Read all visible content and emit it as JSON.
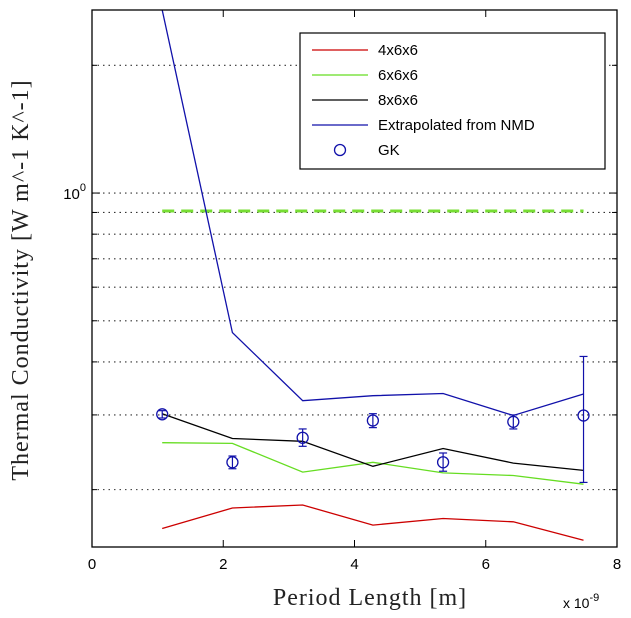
{
  "chart_data": {
    "type": "line",
    "xlabel": "Period Length [m]",
    "ylabel": "Thermal Conductivity [W m^-1 K^-1]",
    "x_multiplier_label": "x 10",
    "x_multiplier_exponent": "-9",
    "xlim": [
      0,
      8
    ],
    "ylim": [
      0.1465,
      2.7
    ],
    "yscale": "log",
    "x_ticks": [
      0,
      2,
      4,
      6,
      8
    ],
    "x_tick_labels": [
      "0",
      "2",
      "4",
      "6",
      "8"
    ],
    "y_major_tick": 1,
    "y_major_tick_base": "10",
    "y_major_tick_exp": "0",
    "y_minor_ticks": [
      0.2,
      0.3,
      0.4,
      0.5,
      0.6,
      0.7,
      0.8,
      0.9,
      2
    ],
    "grid": "y-dotted",
    "legend_position": "top-right",
    "series": [
      {
        "name": "4x6x6",
        "color": "#cc0000",
        "style": "line",
        "x": [
          1.07,
          2.14,
          3.21,
          4.28,
          5.35,
          6.42,
          7.49
        ],
        "y": [
          0.162,
          0.181,
          0.184,
          0.165,
          0.171,
          0.168,
          0.152
        ]
      },
      {
        "name": "6x6x6",
        "color": "#66dd22",
        "style": "line",
        "x": [
          1.07,
          2.14,
          3.21,
          4.28,
          5.35,
          6.42,
          7.49
        ],
        "y": [
          0.258,
          0.257,
          0.22,
          0.232,
          0.219,
          0.216,
          0.206
        ]
      },
      {
        "name": "8x6x6",
        "color": "#000000",
        "style": "line",
        "x": [
          1.07,
          2.14,
          3.21,
          4.28,
          5.35,
          6.42,
          7.49
        ],
        "y": [
          0.302,
          0.264,
          0.26,
          0.227,
          0.25,
          0.231,
          0.222
        ]
      },
      {
        "name": "Extrapolated from NMD",
        "color": "#1111aa",
        "style": "line",
        "x": [
          1.07,
          2.14,
          3.21,
          4.28,
          5.35,
          6.42,
          7.49
        ],
        "y": [
          2.7,
          0.469,
          0.324,
          0.333,
          0.337,
          0.299,
          0.336
        ]
      },
      {
        "name": "GK",
        "color": "#1111aa",
        "style": "markers-errorbars",
        "x": [
          1.07,
          2.14,
          3.21,
          4.28,
          5.35,
          6.42,
          7.49
        ],
        "y": [
          0.301,
          0.232,
          0.265,
          0.291,
          0.232,
          0.289,
          0.299
        ],
        "err_low": [
          0.006,
          0.008,
          0.012,
          0.011,
          0.011,
          0.011,
          0.091
        ],
        "err_high": [
          0.006,
          0.008,
          0.013,
          0.011,
          0.012,
          0.011,
          0.113
        ]
      }
    ],
    "reference_line": {
      "color": "#77dd33",
      "style": "dashed",
      "y": 0.907,
      "x": [
        1.07,
        7.49
      ]
    }
  }
}
